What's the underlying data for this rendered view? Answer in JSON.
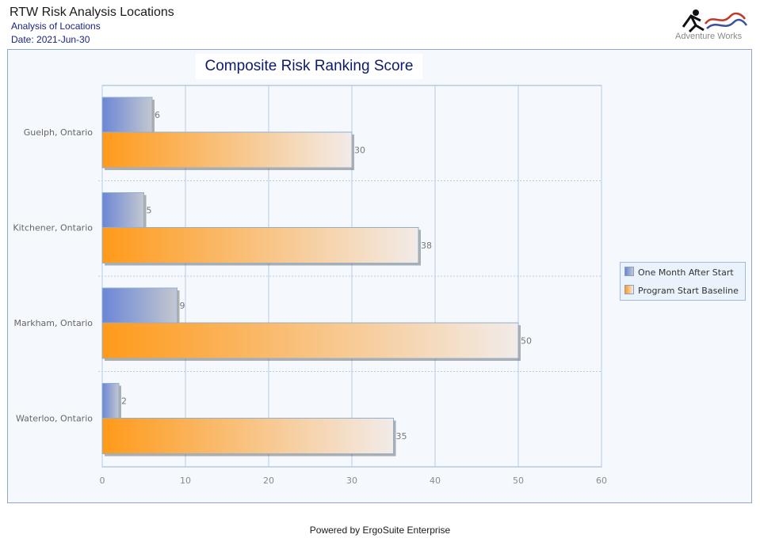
{
  "header": {
    "title": "RTW Risk Analysis Locations",
    "subtitle": "Analysis of Locations",
    "date": "Date: 2021-Jun-30",
    "logo_text": "Adventure Works"
  },
  "footer": {
    "text": "Powered by ErgoSuite Enterprise"
  },
  "colors": {
    "series1_start": "#6b86d6",
    "series1_end": "#c3c7cf",
    "series2_start": "#ff9a1a",
    "series2_end": "#f2ebe8",
    "grid": "#b6cce3",
    "axis": "#9ab3cc"
  },
  "chart_data": {
    "type": "bar",
    "orientation": "horizontal",
    "title": "Composite Risk Ranking Score",
    "categories": [
      "Guelph, Ontario",
      "Kitchener, Ontario",
      "Markham, Ontario",
      "Waterloo, Ontario"
    ],
    "series": [
      {
        "name": "One Month After Start",
        "values": [
          6,
          5,
          9,
          2
        ]
      },
      {
        "name": "Program Start Baseline",
        "values": [
          30,
          38,
          50,
          35
        ]
      }
    ],
    "xlim": [
      0,
      60
    ],
    "xticks": [
      "0",
      "10",
      "20",
      "30",
      "40",
      "50",
      "60"
    ],
    "grid": true,
    "legend_position": "right"
  }
}
